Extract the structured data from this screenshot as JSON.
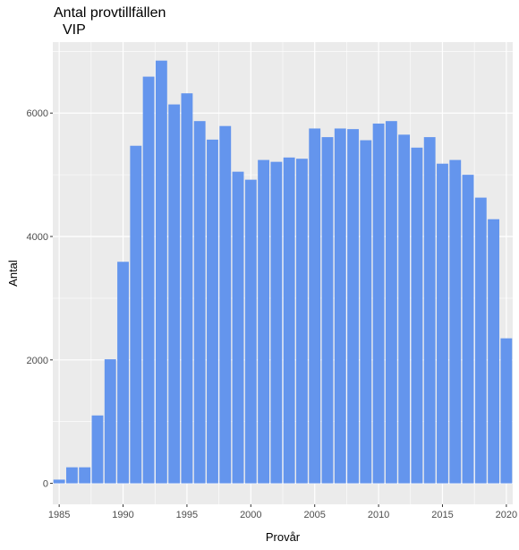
{
  "chart_data": {
    "type": "bar",
    "title": "Antal provtillfällen",
    "subtitle": "VIP",
    "xlabel": "Provår",
    "ylabel": "Antal",
    "x_ticks": [
      1985,
      1990,
      1995,
      2000,
      2005,
      2010,
      2015,
      2020
    ],
    "y_ticks": [
      0,
      2000,
      4000,
      6000
    ],
    "xlim": [
      1984.5,
      2020.5
    ],
    "ylim": [
      -340,
      7150
    ],
    "grid": true,
    "bar_color": "#6495ED",
    "panel_color": "#EBEBEB",
    "grid_color": "#FFFFFF",
    "categories": [
      1985,
      1986,
      1987,
      1988,
      1989,
      1990,
      1991,
      1992,
      1993,
      1994,
      1995,
      1996,
      1997,
      1998,
      1999,
      2000,
      2001,
      2002,
      2003,
      2004,
      2005,
      2006,
      2007,
      2008,
      2009,
      2010,
      2011,
      2012,
      2013,
      2014,
      2015,
      2016,
      2017,
      2018,
      2019,
      2020
    ],
    "values": [
      60,
      260,
      260,
      1100,
      2010,
      3590,
      5470,
      6590,
      6850,
      6140,
      6320,
      5870,
      5570,
      5790,
      5050,
      4920,
      5240,
      5210,
      5280,
      5260,
      5750,
      5610,
      5750,
      5740,
      5560,
      5830,
      5870,
      5650,
      5440,
      5610,
      5180,
      5240,
      5000,
      4630,
      4280,
      2350
    ]
  }
}
